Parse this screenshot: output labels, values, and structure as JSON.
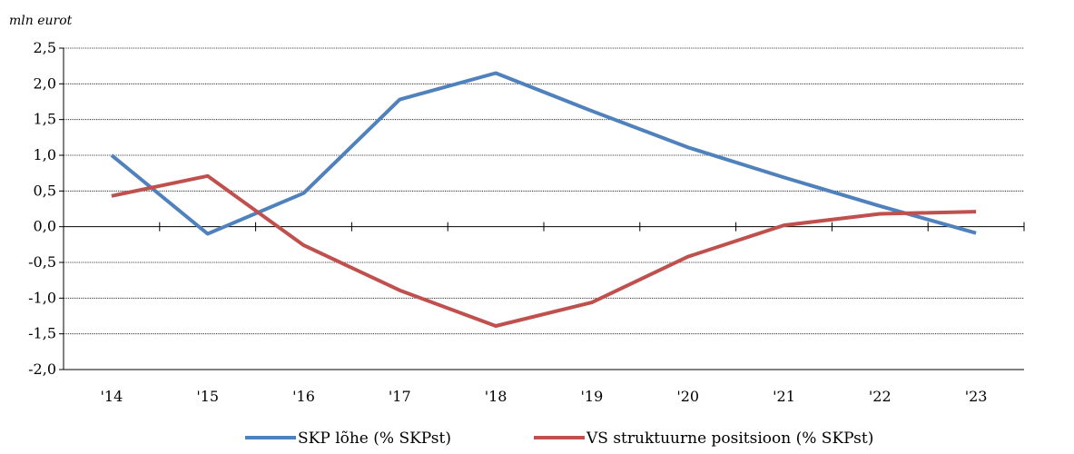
{
  "chart_data": {
    "type": "line",
    "unit_label": "mln eurot",
    "categories": [
      "'14",
      "'15",
      "'16",
      "'17",
      "'18",
      "'19",
      "'20",
      "'21",
      "'22",
      "'23"
    ],
    "ylim": [
      -2.0,
      2.5
    ],
    "ytick_values": [
      2.5,
      2.0,
      1.5,
      1.0,
      0.5,
      0.0,
      -0.5,
      -1.0,
      -1.5,
      -2.0
    ],
    "ytick_labels": [
      "2,5",
      "2,0",
      "1,5",
      "1,0",
      "0,5",
      "0,0",
      "-0,5",
      "-1,0",
      "-1,5",
      "-2,0"
    ],
    "grid": true,
    "legend_position": "bottom",
    "series": [
      {
        "name": "SKP lõhe (% SKPst)",
        "color": "#4f81bd",
        "values": [
          1.0,
          -0.1,
          0.47,
          1.78,
          2.15,
          1.62,
          1.11,
          0.69,
          0.29,
          -0.09
        ]
      },
      {
        "name": "VS struktuurne positsioon (% SKPst)",
        "color": "#c0504d",
        "values": [
          0.43,
          0.71,
          -0.26,
          -0.89,
          -1.39,
          -1.06,
          -0.42,
          0.02,
          0.18,
          0.21
        ]
      }
    ]
  }
}
